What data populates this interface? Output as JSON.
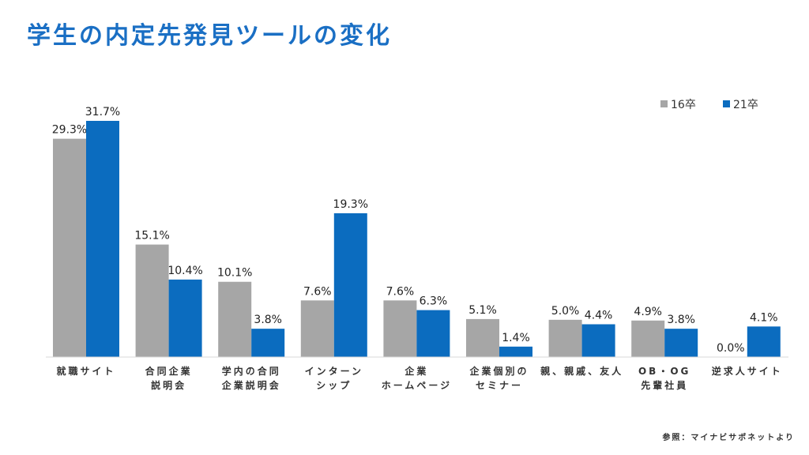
{
  "title": "学生の内定先発見ツールの変化",
  "source": "参照：マイナビサポネットより",
  "colors": {
    "title": "#1a6fc4",
    "series_16": "#a6a6a6",
    "series_21": "#0b6cbf"
  },
  "chart_data": {
    "type": "bar",
    "categories": [
      [
        "就職サイト"
      ],
      [
        "合同企業",
        "説明会"
      ],
      [
        "学内の合同",
        "企業説明会"
      ],
      [
        "インターン",
        "シップ"
      ],
      [
        "企業",
        "ホームページ"
      ],
      [
        "企業個別の",
        "セミナー"
      ],
      [
        "親、親戚、友人"
      ],
      [
        "OB・OG",
        "先輩社員"
      ],
      [
        "逆求人サイト"
      ]
    ],
    "series": [
      {
        "name": "16卒",
        "values": [
          29.3,
          15.1,
          10.1,
          7.6,
          7.6,
          5.1,
          5.0,
          4.9,
          0.0
        ],
        "labels": [
          "29.3%",
          "15.1%",
          "10.1%",
          "7.6%",
          "7.6%",
          "5.1%",
          "5.0%",
          "4.9%",
          "0.0%"
        ]
      },
      {
        "name": "21卒",
        "values": [
          31.7,
          10.4,
          3.8,
          19.3,
          6.3,
          1.4,
          4.4,
          3.8,
          4.1
        ],
        "labels": [
          "31.7%",
          "10.4%",
          "3.8%",
          "19.3%",
          "6.3%",
          "1.4%",
          "4.4%",
          "3.8%",
          "4.1%"
        ]
      }
    ],
    "ylim": [
      0,
      31.7
    ],
    "grid": false,
    "legend_position": "top-right"
  }
}
